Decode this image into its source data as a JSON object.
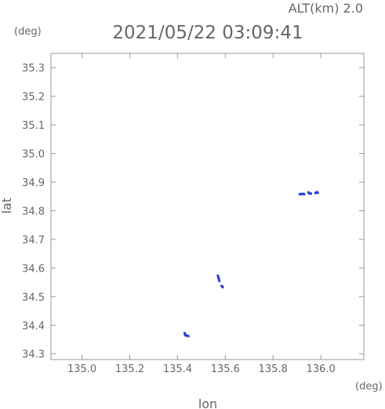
{
  "header": {
    "altitude_label": "ALT(km) 2.0",
    "timestamp": "2021/05/22 03:09:41"
  },
  "chart_data": {
    "type": "scatter",
    "title": "2021/05/22 03:09:41",
    "xlabel": "lon",
    "ylabel": "lat",
    "x_unit": "(deg)",
    "y_unit": "(deg)",
    "xlim": [
      134.87,
      136.18
    ],
    "ylim": [
      34.28,
      35.35
    ],
    "x_ticks": [
      "135.0",
      "135.2",
      "135.4",
      "135.6",
      "135.8",
      "136.0"
    ],
    "y_ticks": [
      "34.3",
      "34.4",
      "34.5",
      "34.6",
      "34.7",
      "34.8",
      "34.9",
      "35.0",
      "35.1",
      "35.2",
      "35.3"
    ],
    "grid": false,
    "point_color": "#2a3fd6",
    "series": [
      {
        "points": [
          {
            "x": 135.43,
            "y": 34.372
          },
          {
            "x": 135.432,
            "y": 34.366
          },
          {
            "x": 135.436,
            "y": 34.364
          },
          {
            "x": 135.441,
            "y": 34.363
          },
          {
            "x": 135.445,
            "y": 34.362
          },
          {
            "x": 135.569,
            "y": 34.573
          },
          {
            "x": 135.571,
            "y": 34.567
          },
          {
            "x": 135.573,
            "y": 34.561
          },
          {
            "x": 135.575,
            "y": 34.555
          },
          {
            "x": 135.585,
            "y": 34.537
          },
          {
            "x": 135.589,
            "y": 34.533
          },
          {
            "x": 135.912,
            "y": 34.858
          },
          {
            "x": 135.918,
            "y": 34.858
          },
          {
            "x": 135.924,
            "y": 34.859
          },
          {
            "x": 135.93,
            "y": 34.858
          },
          {
            "x": 135.948,
            "y": 34.864
          },
          {
            "x": 135.952,
            "y": 34.861
          },
          {
            "x": 135.958,
            "y": 34.86
          },
          {
            "x": 135.978,
            "y": 34.862
          },
          {
            "x": 135.983,
            "y": 34.865
          },
          {
            "x": 135.987,
            "y": 34.863
          }
        ]
      }
    ]
  }
}
